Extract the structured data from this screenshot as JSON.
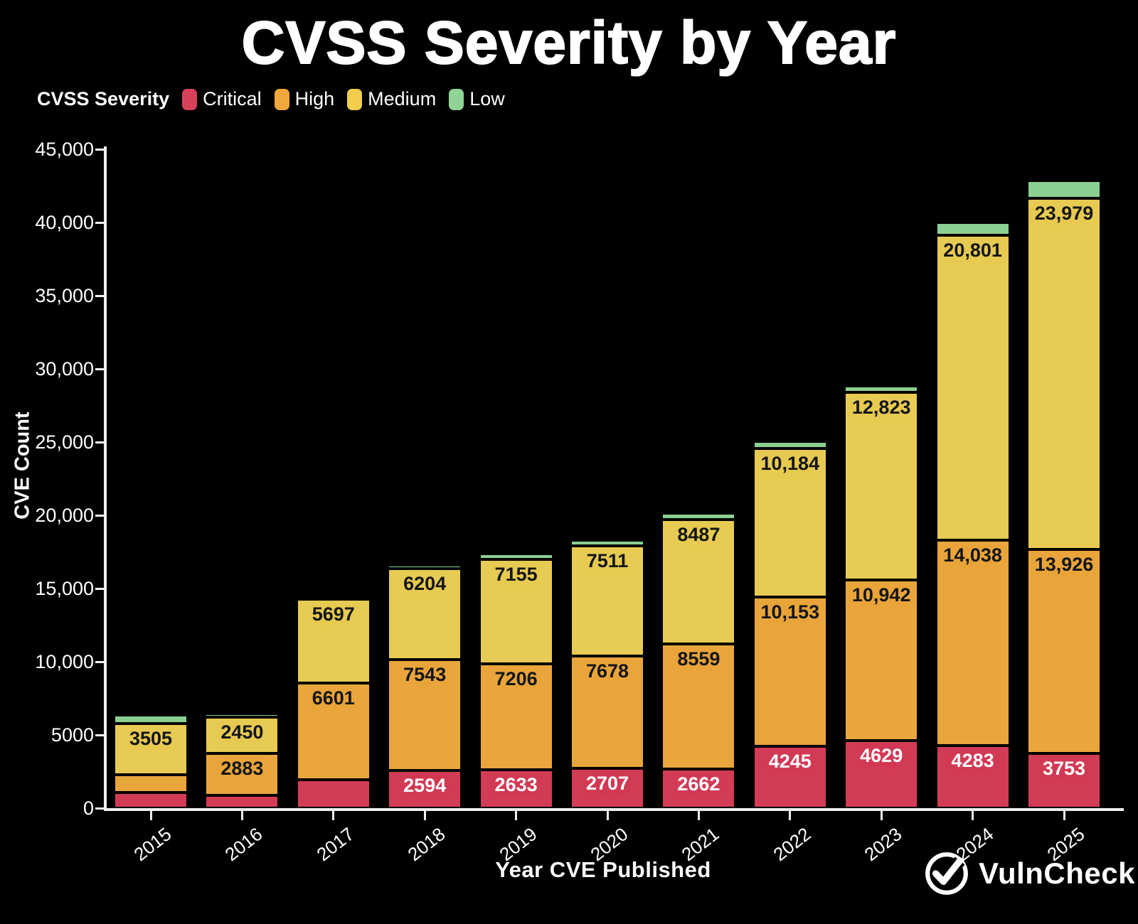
{
  "title": "CVSS Severity by Year",
  "legend": {
    "title": "CVSS Severity",
    "items": [
      {
        "label": "Critical",
        "color": "#d8415a"
      },
      {
        "label": "High",
        "color": "#f0a73c"
      },
      {
        "label": "Medium",
        "color": "#f2cd4e"
      },
      {
        "label": "Low",
        "color": "#8fd496"
      }
    ]
  },
  "chart_data": {
    "type": "bar",
    "stacked": true,
    "title": "CVSS Severity by Year",
    "xlabel": "Year CVE Published",
    "ylabel": "CVE Count",
    "ylim": [
      0,
      45000
    ],
    "grid": false,
    "legend_position": "top-left",
    "categories": [
      "2015",
      "2016",
      "2017",
      "2018",
      "2019",
      "2020",
      "2021",
      "2022",
      "2023",
      "2024",
      "2025"
    ],
    "yticks": [
      {
        "value": 45000,
        "label": "45,000"
      },
      {
        "value": 40000,
        "label": "40,000"
      },
      {
        "value": 35000,
        "label": "35,000"
      },
      {
        "value": 30000,
        "label": "30,000"
      },
      {
        "value": 25000,
        "label": "25,000"
      },
      {
        "value": 20000,
        "label": "20,000"
      },
      {
        "value": 15000,
        "label": "15,000"
      },
      {
        "value": 10000,
        "label": "10,000"
      },
      {
        "value": 5000,
        "label": "5000"
      },
      {
        "value": 0,
        "label": "0"
      }
    ],
    "series": [
      {
        "name": "Critical",
        "color": "#d23c56",
        "label_color": "#ffffff",
        "values": [
          1080,
          870,
          1960,
          2594,
          2633,
          2707,
          2662,
          4245,
          4629,
          4283,
          3753
        ],
        "labels": [
          null,
          null,
          null,
          "2594",
          "2633",
          "2707",
          "2662",
          "4245",
          "4629",
          "4283",
          "3753"
        ]
      },
      {
        "name": "High",
        "color": "#e9a63d",
        "label_color": "#151515",
        "values": [
          1190,
          2883,
          6601,
          7543,
          7206,
          7678,
          8559,
          10153,
          10942,
          14038,
          13926
        ],
        "labels": [
          null,
          "2883",
          "6601",
          "7543",
          "7206",
          "7678",
          "8559",
          "10,153",
          "10,942",
          "14,038",
          "13,926"
        ]
      },
      {
        "name": "Medium",
        "color": "#e7cb54",
        "label_color": "#151515",
        "values": [
          3505,
          2450,
          5697,
          6204,
          7155,
          7511,
          8487,
          10184,
          12823,
          20801,
          23979
        ],
        "labels": [
          "3505",
          "2450",
          "5697",
          "6204",
          "7155",
          "7511",
          "8487",
          "10,184",
          "12,823",
          "20,801",
          "23,979"
        ]
      },
      {
        "name": "Low",
        "color": "#8ccf92",
        "label_color": "#151515",
        "values": [
          560,
          270,
          230,
          250,
          390,
          390,
          420,
          480,
          440,
          900,
          1200
        ],
        "labels": [
          null,
          null,
          null,
          null,
          null,
          null,
          null,
          null,
          null,
          null,
          null
        ]
      }
    ]
  },
  "footer": {
    "brand": "VulnCheck"
  }
}
